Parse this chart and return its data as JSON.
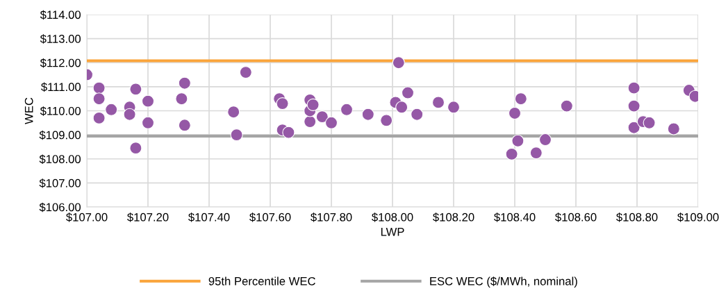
{
  "chart_data": {
    "type": "scatter",
    "xlabel": "LWP",
    "ylabel": "WEC",
    "x": [
      107.0,
      107.04,
      107.04,
      107.04,
      107.08,
      107.14,
      107.14,
      107.16,
      107.16,
      107.2,
      107.2,
      107.31,
      107.32,
      107.32,
      107.48,
      107.49,
      107.52,
      107.63,
      107.64,
      107.64,
      107.66,
      107.73,
      107.73,
      107.73,
      107.74,
      107.77,
      107.8,
      107.85,
      107.92,
      107.98,
      108.01,
      108.02,
      108.03,
      108.05,
      108.08,
      108.15,
      108.2,
      108.39,
      108.4,
      108.41,
      108.42,
      108.47,
      108.5,
      108.57,
      108.79,
      108.79,
      108.79,
      108.81,
      108.82,
      108.84,
      108.92,
      108.97,
      108.99
    ],
    "series": [
      {
        "color": "#9558a6",
        "values": [
          111.5,
          110.95,
          110.5,
          109.7,
          110.05,
          110.15,
          109.85,
          110.9,
          108.45,
          110.4,
          109.5,
          110.5,
          111.15,
          109.4,
          109.95,
          109.0,
          111.6,
          110.5,
          110.3,
          109.2,
          109.1,
          109.55,
          110.0,
          110.45,
          110.25,
          109.75,
          109.5,
          110.05,
          109.85,
          109.6,
          110.35,
          112.0,
          110.15,
          110.75,
          109.85,
          110.35,
          110.15,
          108.2,
          109.9,
          108.75,
          110.5,
          108.25,
          108.8,
          110.2,
          110.95,
          110.2,
          109.3,
          null,
          109.55,
          109.5,
          109.25,
          110.85,
          110.6
        ]
      }
    ],
    "marker": "circle",
    "xlim": [
      107,
      109
    ],
    "ylim": [
      106,
      114
    ],
    "xticks": [
      {
        "value": 107,
        "label": "$107.00"
      },
      {
        "value": 107.2,
        "label": "$107.20"
      },
      {
        "value": 107.4,
        "label": "$107.40"
      },
      {
        "value": 107.6,
        "label": "$107.60"
      },
      {
        "value": 107.8,
        "label": "$107.80"
      },
      {
        "value": 108,
        "label": "$108.00"
      },
      {
        "value": 108.2,
        "label": "$108.20"
      },
      {
        "value": 108.4,
        "label": "$108.40"
      },
      {
        "value": 108.6,
        "label": "$108.60"
      },
      {
        "value": 108.8,
        "label": "$108.80"
      },
      {
        "value": 109,
        "label": "$109.00"
      }
    ],
    "yticks": [
      {
        "value": 106,
        "label": "$106.00"
      },
      {
        "value": 107,
        "label": "$107.00"
      },
      {
        "value": 108,
        "label": "$108.00"
      },
      {
        "value": 109,
        "label": "$109.00"
      },
      {
        "value": 110,
        "label": "$110.00"
      },
      {
        "value": 111,
        "label": "$111.00"
      },
      {
        "value": 112,
        "label": "$112.00"
      },
      {
        "value": 113,
        "label": "$113.00"
      },
      {
        "value": 114,
        "label": "$114.00"
      }
    ],
    "ref_lines": [
      {
        "axis": "y",
        "value": 112.08,
        "label": "95th Percentile WEC",
        "color": "#faa43a"
      },
      {
        "axis": "y",
        "value": 108.95,
        "label": "ESC WEC ($/MWh, nominal)",
        "color": "#a5a5a5"
      }
    ],
    "grid": true,
    "legend": "bottom"
  }
}
